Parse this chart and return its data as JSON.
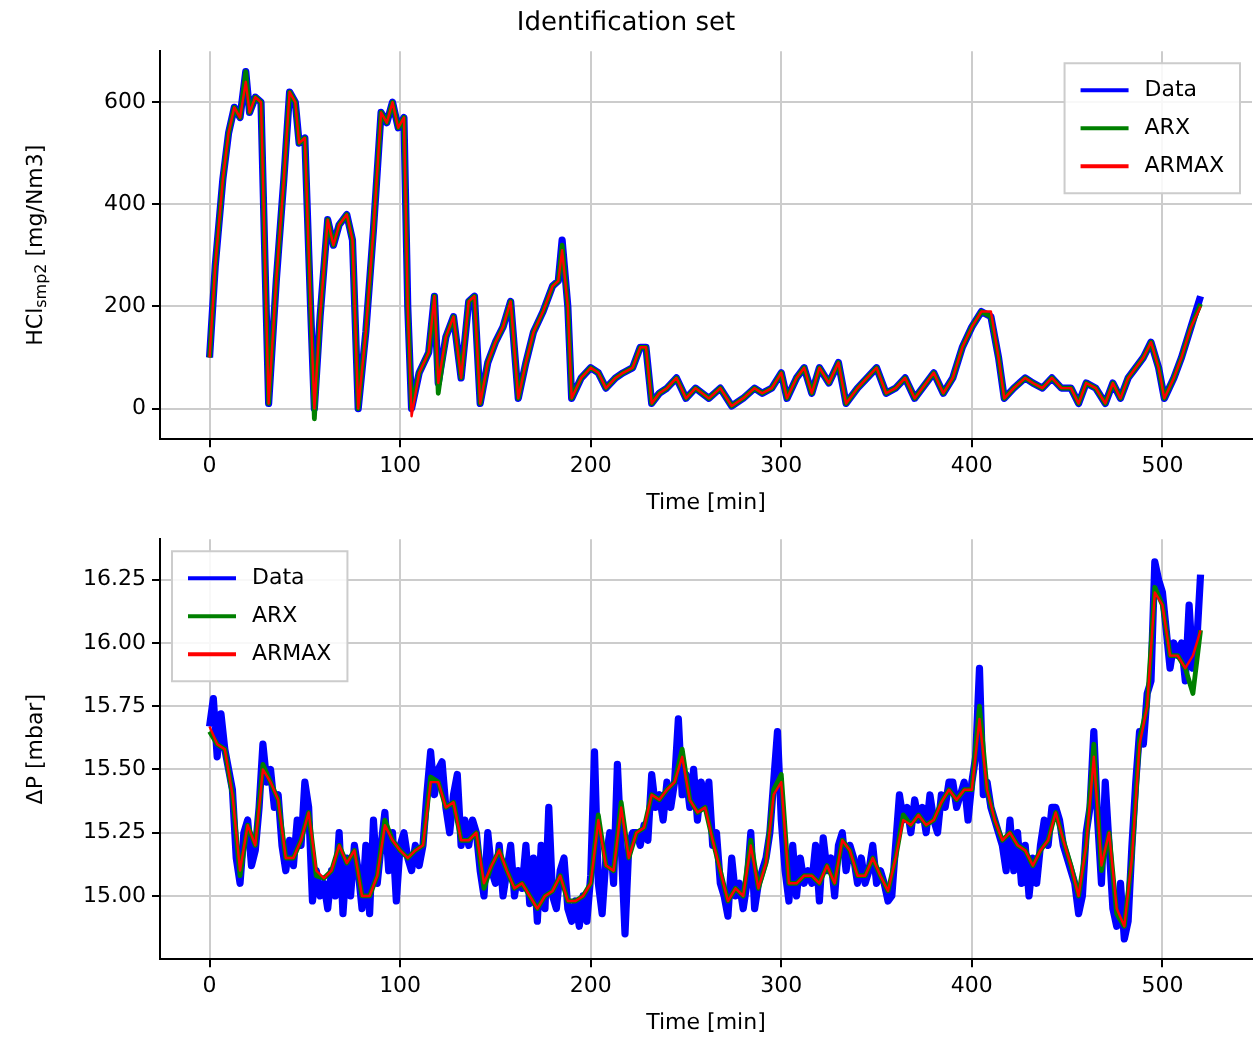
{
  "chart_data": [
    {
      "type": "line",
      "title": "Identification set",
      "xlabel": "Time [min]",
      "ylabel": "HCl$_{smp2}$ [mg/Nm3]",
      "xlim": [
        -26,
        547
      ],
      "ylim": [
        -60,
        700
      ],
      "xticks": [
        0,
        100,
        200,
        300,
        400,
        500
      ],
      "yticks": [
        0,
        200,
        400,
        600
      ],
      "grid": true,
      "legend": "top right",
      "marker": "none",
      "line_style": "solid",
      "x": [
        0,
        3,
        7,
        10,
        13,
        16,
        19,
        21,
        24,
        27,
        29,
        31,
        35,
        39,
        42,
        45,
        47,
        50,
        53,
        55,
        58,
        62,
        65,
        68,
        72,
        75,
        78,
        82,
        86,
        90,
        93,
        96,
        99,
        102,
        104,
        106,
        110,
        115,
        118,
        120,
        124,
        128,
        132,
        136,
        139,
        142,
        146,
        150,
        154,
        158,
        162,
        166,
        170,
        175,
        180,
        183,
        185,
        188,
        190,
        195,
        200,
        204,
        208,
        213,
        217,
        222,
        226,
        229,
        232,
        236,
        240,
        245,
        250,
        255,
        262,
        268,
        274,
        280,
        286,
        290,
        295,
        300,
        303,
        308,
        312,
        316,
        320,
        325,
        330,
        334,
        340,
        345,
        350,
        355,
        360,
        365,
        370,
        376,
        380,
        385,
        390,
        395,
        400,
        405,
        410,
        414,
        417,
        422,
        428,
        432,
        437,
        442,
        447,
        452,
        456,
        460,
        465,
        470,
        474,
        478,
        482,
        486,
        490,
        494,
        498,
        501,
        506,
        510,
        515,
        520
      ],
      "series": [
        {
          "name": "Data",
          "color": "#0000ff",
          "values": [
            100,
            280,
            450,
            540,
            590,
            570,
            660,
            580,
            610,
            600,
            300,
            10,
            250,
            450,
            620,
            600,
            520,
            530,
            200,
            0,
            180,
            370,
            320,
            360,
            380,
            330,
            0,
            150,
            350,
            580,
            560,
            600,
            550,
            570,
            200,
            0,
            70,
            110,
            220,
            50,
            140,
            180,
            60,
            210,
            220,
            10,
            90,
            130,
            160,
            210,
            20,
            90,
            150,
            190,
            240,
            250,
            330,
            200,
            20,
            60,
            80,
            70,
            40,
            60,
            70,
            80,
            120,
            120,
            10,
            30,
            40,
            60,
            20,
            40,
            20,
            40,
            5,
            20,
            40,
            30,
            40,
            70,
            20,
            60,
            80,
            30,
            80,
            50,
            90,
            10,
            40,
            60,
            80,
            30,
            40,
            60,
            20,
            50,
            70,
            30,
            60,
            120,
            160,
            190,
            180,
            100,
            20,
            40,
            60,
            50,
            40,
            60,
            40,
            40,
            10,
            50,
            40,
            10,
            50,
            20,
            60,
            80,
            100,
            130,
            80,
            20,
            60,
            100,
            160,
            220
          ]
        },
        {
          "name": "ARX",
          "color": "#008000",
          "values": [
            100,
            280,
            450,
            540,
            590,
            570,
            660,
            580,
            610,
            600,
            300,
            10,
            250,
            450,
            620,
            600,
            520,
            530,
            200,
            -20,
            180,
            370,
            320,
            360,
            380,
            330,
            0,
            150,
            350,
            580,
            560,
            600,
            550,
            570,
            200,
            0,
            70,
            110,
            220,
            30,
            140,
            180,
            60,
            210,
            220,
            10,
            90,
            130,
            160,
            210,
            20,
            90,
            150,
            190,
            240,
            250,
            320,
            200,
            20,
            60,
            80,
            70,
            40,
            60,
            70,
            80,
            120,
            120,
            10,
            30,
            40,
            60,
            20,
            40,
            20,
            40,
            5,
            20,
            40,
            30,
            40,
            70,
            20,
            60,
            80,
            30,
            80,
            50,
            90,
            10,
            40,
            60,
            80,
            30,
            40,
            60,
            20,
            50,
            70,
            30,
            60,
            120,
            160,
            190,
            180,
            100,
            20,
            40,
            60,
            50,
            40,
            60,
            40,
            40,
            10,
            50,
            40,
            10,
            50,
            20,
            60,
            80,
            100,
            130,
            80,
            20,
            60,
            100,
            160,
            205
          ]
        },
        {
          "name": "ARMAX",
          "color": "#ff0000",
          "values": [
            100,
            280,
            450,
            540,
            590,
            570,
            640,
            580,
            610,
            600,
            300,
            10,
            250,
            450,
            620,
            600,
            520,
            530,
            200,
            0,
            180,
            370,
            320,
            360,
            380,
            330,
            0,
            150,
            350,
            580,
            560,
            600,
            550,
            570,
            200,
            -15,
            70,
            110,
            220,
            50,
            140,
            180,
            60,
            210,
            220,
            10,
            90,
            130,
            160,
            210,
            20,
            90,
            150,
            190,
            240,
            250,
            310,
            200,
            20,
            60,
            80,
            70,
            40,
            60,
            70,
            80,
            120,
            120,
            10,
            30,
            40,
            60,
            20,
            40,
            20,
            40,
            5,
            20,
            40,
            30,
            40,
            70,
            20,
            60,
            80,
            30,
            80,
            50,
            90,
            10,
            40,
            60,
            80,
            30,
            40,
            60,
            20,
            50,
            70,
            30,
            60,
            120,
            160,
            190,
            190,
            100,
            20,
            40,
            60,
            50,
            40,
            60,
            40,
            40,
            10,
            50,
            40,
            10,
            50,
            20,
            60,
            80,
            100,
            130,
            80,
            20,
            60,
            100,
            160,
            200
          ]
        }
      ]
    },
    {
      "type": "line",
      "xlabel": "Time [min]",
      "ylabel": "ΔP [mbar]",
      "xlim": [
        -26,
        547
      ],
      "ylim": [
        14.75,
        16.41
      ],
      "xticks": [
        0,
        100,
        200,
        300,
        400,
        500
      ],
      "yticks": [
        {
          "value": 15,
          "label": "15.00"
        },
        15.25,
        {
          "value": 15.5,
          "label": "15.50"
        },
        15.75,
        {
          "value": 16,
          "label": "16.00"
        },
        16.25
      ],
      "grid": true,
      "legend": "top left",
      "marker": "none",
      "line_style": "solid",
      "series": [
        {
          "name": "Data",
          "color": "#0000ff",
          "x": [
            0,
            2,
            4,
            6,
            8,
            10,
            12,
            14,
            16,
            18,
            20,
            22,
            24,
            26,
            28,
            30,
            32,
            34,
            36,
            38,
            40,
            42,
            44,
            46,
            48,
            50,
            52,
            54,
            56,
            58,
            60,
            62,
            64,
            66,
            68,
            70,
            72,
            74,
            76,
            78,
            80,
            82,
            84,
            86,
            88,
            90,
            92,
            94,
            96,
            98,
            100,
            102,
            104,
            106,
            108,
            110,
            112,
            114,
            116,
            118,
            120,
            122,
            124,
            126,
            128,
            130,
            132,
            134,
            136,
            138,
            140,
            142,
            144,
            146,
            148,
            150,
            152,
            154,
            156,
            158,
            160,
            162,
            164,
            166,
            168,
            170,
            172,
            174,
            176,
            178,
            180,
            182,
            184,
            186,
            188,
            190,
            192,
            194,
            196,
            198,
            200,
            202,
            204,
            206,
            208,
            210,
            212,
            214,
            216,
            218,
            220,
            222,
            224,
            226,
            228,
            230,
            232,
            234,
            236,
            238,
            240,
            242,
            244,
            246,
            248,
            250,
            252,
            254,
            256,
            258,
            260,
            262,
            264,
            266,
            268,
            270,
            272,
            274,
            276,
            278,
            280,
            282,
            284,
            286,
            288,
            290,
            292,
            294,
            296,
            298,
            300,
            302,
            304,
            306,
            308,
            310,
            312,
            314,
            316,
            318,
            320,
            322,
            324,
            326,
            328,
            330,
            332,
            334,
            336,
            338,
            340,
            342,
            344,
            346,
            348,
            350,
            352,
            354,
            356,
            358,
            360,
            362,
            364,
            366,
            368,
            370,
            372,
            374,
            376,
            378,
            380,
            382,
            384,
            386,
            388,
            390,
            392,
            394,
            396,
            398,
            400,
            402,
            404,
            406,
            408,
            410,
            412,
            414,
            416,
            418,
            420,
            422,
            424,
            426,
            428,
            430,
            432,
            434,
            436,
            438,
            440,
            442,
            444,
            446,
            448,
            450,
            452,
            454,
            456,
            458,
            460,
            462,
            464,
            466,
            468,
            470,
            472,
            474,
            476,
            478,
            480,
            482,
            484,
            486,
            488,
            490,
            492,
            494,
            496,
            498,
            500,
            502,
            504,
            506,
            508,
            510,
            512,
            514,
            516,
            518,
            520
          ],
          "values": [
            15.67,
            15.78,
            15.55,
            15.72,
            15.58,
            15.5,
            15.42,
            15.15,
            15.05,
            15.25,
            15.3,
            15.12,
            15.18,
            15.35,
            15.6,
            15.45,
            15.5,
            15.35,
            15.4,
            15.2,
            15.1,
            15.22,
            15.12,
            15.3,
            15.2,
            15.45,
            15.35,
            14.98,
            15.1,
            15.0,
            15.05,
            14.95,
            15.1,
            15.0,
            15.25,
            14.93,
            15.15,
            15.0,
            15.2,
            15.1,
            14.95,
            15.2,
            14.93,
            15.3,
            15.05,
            15.2,
            15.33,
            15.1,
            15.25,
            14.98,
            15.2,
            15.25,
            15.15,
            15.1,
            15.2,
            15.12,
            15.2,
            15.4,
            15.57,
            15.4,
            15.5,
            15.53,
            15.35,
            15.25,
            15.4,
            15.48,
            15.2,
            15.3,
            15.2,
            15.3,
            15.25,
            15.1,
            15.0,
            15.25,
            15.1,
            15.05,
            15.2,
            15.0,
            15.1,
            15.2,
            15.0,
            15.1,
            15.03,
            15.2,
            14.97,
            15.15,
            14.9,
            15.2,
            14.95,
            15.35,
            15.0,
            14.95,
            15.1,
            15.15,
            14.95,
            14.9,
            14.98,
            14.88,
            15.0,
            14.9,
            15.08,
            15.57,
            15.05,
            14.93,
            15.15,
            15.25,
            15.05,
            15.52,
            15.2,
            14.85,
            15.2,
            15.25,
            15.25,
            15.2,
            15.28,
            15.22,
            15.48,
            15.35,
            15.4,
            15.3,
            15.45,
            15.35,
            15.45,
            15.7,
            15.4,
            15.48,
            15.35,
            15.5,
            15.3,
            15.45,
            15.35,
            15.45,
            15.2,
            15.25,
            15.05,
            15.0,
            14.92,
            15.15,
            15.0,
            15.05,
            14.95,
            15.05,
            15.25,
            14.95,
            15.05,
            15.1,
            15.15,
            15.25,
            15.45,
            15.65,
            15.3,
            15.1,
            14.98,
            15.2,
            15.0,
            15.15,
            15.05,
            15.1,
            15.05,
            15.2,
            14.98,
            15.23,
            15.1,
            15.15,
            15.0,
            15.2,
            15.25,
            15.1,
            15.2,
            15.15,
            15.05,
            15.15,
            15.05,
            15.1,
            15.2,
            15.05,
            15.1,
            15.05,
            14.98,
            15.0,
            15.2,
            15.4,
            15.3,
            15.35,
            15.25,
            15.38,
            15.3,
            15.35,
            15.25,
            15.4,
            15.3,
            15.25,
            15.4,
            15.35,
            15.45,
            15.45,
            15.35,
            15.4,
            15.45,
            15.3,
            15.45,
            15.55,
            15.9,
            15.4,
            15.45,
            15.35,
            15.3,
            15.25,
            15.2,
            15.1,
            15.3,
            15.1,
            15.25,
            15.05,
            15.2,
            15.0,
            15.15,
            15.05,
            15.2,
            15.3,
            15.2,
            15.35,
            15.35,
            15.3,
            15.2,
            15.15,
            15.1,
            15.05,
            14.93,
            15.0,
            15.25,
            15.35,
            15.65,
            15.3,
            15.05,
            15.45,
            15.2,
            14.95,
            14.88,
            15.05,
            14.83,
            14.9,
            15.2,
            15.45,
            15.65,
            15.6,
            15.8,
            15.85,
            16.32,
            16.25,
            16.2,
            16.05,
            15.9,
            16.0,
            15.95,
            16.0,
            15.85,
            16.15,
            15.9,
            16.0,
            16.27
          ]
        },
        {
          "name": "ARX",
          "color": "#008000",
          "x": [
            0,
            4,
            8,
            12,
            16,
            20,
            24,
            28,
            32,
            36,
            40,
            44,
            48,
            52,
            56,
            60,
            64,
            68,
            72,
            76,
            80,
            84,
            88,
            92,
            96,
            100,
            104,
            108,
            112,
            116,
            120,
            124,
            128,
            132,
            136,
            140,
            144,
            148,
            152,
            156,
            160,
            164,
            168,
            172,
            176,
            180,
            184,
            188,
            192,
            196,
            200,
            204,
            208,
            212,
            216,
            220,
            224,
            228,
            232,
            236,
            240,
            244,
            248,
            252,
            256,
            260,
            264,
            268,
            272,
            276,
            280,
            284,
            288,
            292,
            296,
            300,
            304,
            308,
            312,
            316,
            320,
            324,
            328,
            332,
            336,
            340,
            344,
            348,
            352,
            356,
            360,
            364,
            368,
            372,
            376,
            380,
            384,
            388,
            392,
            396,
            400,
            404,
            408,
            412,
            416,
            420,
            424,
            428,
            432,
            436,
            440,
            444,
            448,
            452,
            456,
            460,
            464,
            468,
            472,
            476,
            480,
            484,
            488,
            492,
            496,
            500,
            504,
            508,
            512,
            516,
            520
          ],
          "values": [
            15.65,
            15.6,
            15.58,
            15.4,
            15.08,
            15.28,
            15.2,
            15.52,
            15.45,
            15.38,
            15.15,
            15.15,
            15.22,
            15.33,
            15.08,
            15.07,
            15.1,
            15.2,
            15.13,
            15.18,
            15.0,
            15.0,
            15.08,
            15.3,
            15.22,
            15.18,
            15.15,
            15.18,
            15.2,
            15.47,
            15.45,
            15.35,
            15.37,
            15.22,
            15.22,
            15.25,
            15.03,
            15.12,
            15.18,
            15.1,
            15.03,
            15.05,
            15.0,
            14.95,
            15.0,
            15.02,
            15.08,
            14.98,
            14.98,
            15.0,
            15.05,
            15.32,
            15.12,
            15.1,
            15.37,
            15.15,
            15.25,
            15.27,
            15.4,
            15.38,
            15.42,
            15.45,
            15.58,
            15.38,
            15.33,
            15.35,
            15.22,
            15.1,
            14.98,
            15.03,
            15.0,
            15.22,
            15.03,
            15.13,
            15.42,
            15.48,
            15.05,
            15.05,
            15.08,
            15.08,
            15.05,
            15.12,
            15.05,
            15.22,
            15.18,
            15.08,
            15.08,
            15.15,
            15.08,
            15.02,
            15.15,
            15.32,
            15.28,
            15.32,
            15.28,
            15.3,
            15.37,
            15.42,
            15.38,
            15.42,
            15.42,
            15.75,
            15.42,
            15.3,
            15.22,
            15.25,
            15.2,
            15.18,
            15.12,
            15.18,
            15.22,
            15.33,
            15.22,
            15.12,
            15.0,
            15.2,
            15.6,
            15.1,
            15.25,
            14.93,
            14.88,
            15.15,
            15.62,
            15.75,
            16.22,
            16.15,
            15.95,
            15.95,
            15.9,
            15.8,
            16.05
          ]
        },
        {
          "name": "ARMAX",
          "color": "#ff0000",
          "x": [
            0,
            4,
            8,
            12,
            16,
            20,
            24,
            28,
            32,
            36,
            40,
            44,
            48,
            52,
            56,
            60,
            64,
            68,
            72,
            76,
            80,
            84,
            88,
            92,
            96,
            100,
            104,
            108,
            112,
            116,
            120,
            124,
            128,
            132,
            136,
            140,
            144,
            148,
            152,
            156,
            160,
            164,
            168,
            172,
            176,
            180,
            184,
            188,
            192,
            196,
            200,
            204,
            208,
            212,
            216,
            220,
            224,
            228,
            232,
            236,
            240,
            244,
            248,
            252,
            256,
            260,
            264,
            268,
            272,
            276,
            280,
            284,
            288,
            292,
            296,
            300,
            304,
            308,
            312,
            316,
            320,
            324,
            328,
            332,
            336,
            340,
            344,
            348,
            352,
            356,
            360,
            364,
            368,
            372,
            376,
            380,
            384,
            388,
            392,
            396,
            400,
            404,
            408,
            412,
            416,
            420,
            424,
            428,
            432,
            436,
            440,
            444,
            448,
            452,
            456,
            460,
            464,
            468,
            472,
            476,
            480,
            484,
            488,
            492,
            496,
            500,
            504,
            508,
            512,
            516,
            520
          ],
          "values": [
            15.67,
            15.6,
            15.58,
            15.4,
            15.1,
            15.28,
            15.2,
            15.5,
            15.45,
            15.38,
            15.15,
            15.15,
            15.22,
            15.33,
            15.1,
            15.07,
            15.1,
            15.2,
            15.13,
            15.18,
            15.0,
            15.0,
            15.08,
            15.28,
            15.22,
            15.18,
            15.15,
            15.18,
            15.2,
            15.45,
            15.45,
            15.35,
            15.37,
            15.22,
            15.22,
            15.25,
            15.05,
            15.12,
            15.18,
            15.1,
            15.03,
            15.05,
            15.0,
            14.95,
            15.0,
            15.02,
            15.08,
            14.98,
            14.98,
            15.0,
            15.05,
            15.3,
            15.12,
            15.1,
            15.35,
            15.15,
            15.25,
            15.27,
            15.4,
            15.38,
            15.42,
            15.45,
            15.55,
            15.38,
            15.33,
            15.35,
            15.22,
            15.1,
            14.98,
            15.03,
            15.0,
            15.2,
            15.03,
            15.13,
            15.4,
            15.45,
            15.05,
            15.05,
            15.08,
            15.08,
            15.05,
            15.12,
            15.05,
            15.22,
            15.18,
            15.08,
            15.08,
            15.15,
            15.08,
            15.02,
            15.15,
            15.3,
            15.28,
            15.32,
            15.28,
            15.3,
            15.37,
            15.42,
            15.38,
            15.42,
            15.42,
            15.7,
            15.42,
            15.3,
            15.22,
            15.25,
            15.2,
            15.18,
            15.12,
            15.18,
            15.22,
            15.33,
            15.22,
            15.12,
            15.0,
            15.2,
            15.55,
            15.12,
            15.25,
            14.95,
            14.88,
            15.15,
            15.6,
            15.75,
            16.2,
            16.15,
            15.95,
            15.95,
            15.9,
            15.95,
            16.05
          ]
        }
      ]
    }
  ]
}
